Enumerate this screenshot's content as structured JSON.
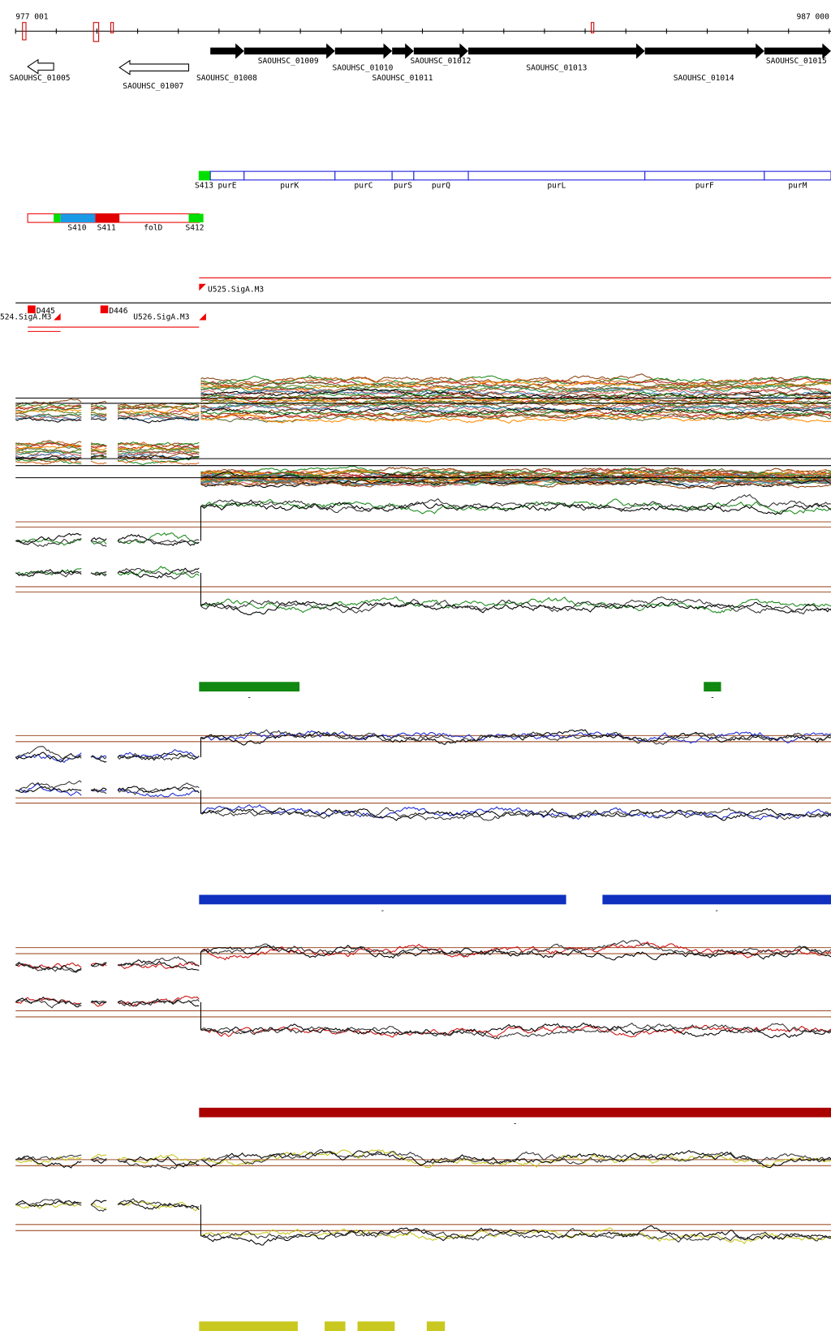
{
  "axis": {
    "start": "977 001",
    "end": "987 000"
  },
  "genes": [
    {
      "label": "SAOUHSC_01005"
    },
    {
      "label": "SAOUHSC_01007"
    },
    {
      "label": "SAOUHSC_01008"
    },
    {
      "label": "SAOUHSC_01009"
    },
    {
      "label": "SAOUHSC_01010"
    },
    {
      "label": "SAOUHSC_01011"
    },
    {
      "label": "SAOUHSC_01012"
    },
    {
      "label": "SAOUHSC_01013"
    },
    {
      "label": "SAOUHSC_01014"
    },
    {
      "label": "SAOUHSC_01015"
    }
  ],
  "operon_blue": [
    {
      "label": "S413"
    },
    {
      "label": "purE"
    },
    {
      "label": "purK"
    },
    {
      "label": "purC"
    },
    {
      "label": "purS"
    },
    {
      "label": "purQ"
    },
    {
      "label": "purL"
    },
    {
      "label": "purF"
    },
    {
      "label": "purM"
    }
  ],
  "operon_red": [
    {
      "label": "S410"
    },
    {
      "label": "S411"
    },
    {
      "label": "folD"
    },
    {
      "label": "S412"
    }
  ],
  "features": [
    {
      "label": "U525.SigA.M3"
    },
    {
      "label": "D445"
    },
    {
      "label": "D446"
    },
    {
      "label": "U526.SigA.M3"
    },
    {
      "label": "524.SigA.M3"
    }
  ],
  "bar_labels": [
    "-",
    "-",
    "-",
    "-",
    "-",
    "-",
    "-",
    "-",
    "-"
  ]
}
